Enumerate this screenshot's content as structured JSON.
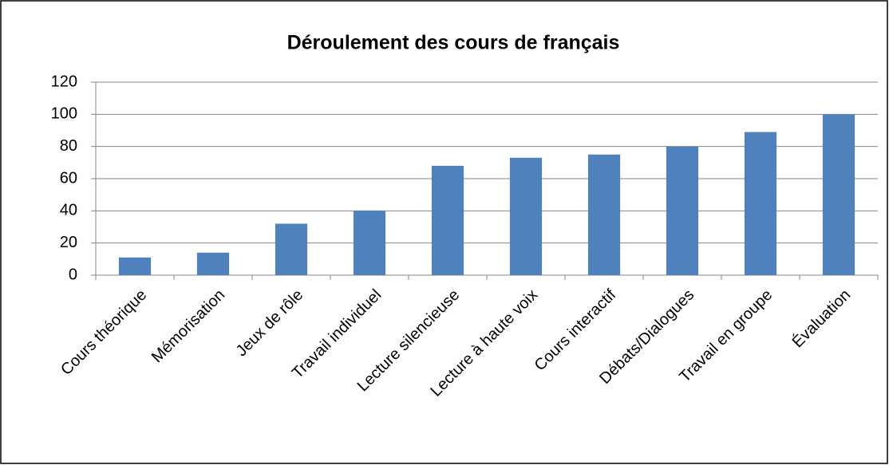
{
  "chart_data": {
    "type": "bar",
    "title": "Déroulement des cours de français",
    "categories": [
      "Cours théorique",
      "Mémorisation",
      "Jeux de rôle",
      "Travail individuel",
      "Lecture silencieuse",
      "Lecture à haute voix",
      "Cours interactif",
      "Débats/Dialogues",
      "Travail en groupe",
      "Évaluation"
    ],
    "values": [
      11,
      14,
      32,
      40,
      68,
      73,
      75,
      80,
      89,
      100
    ],
    "color": "#4f81bd",
    "ylim": [
      0,
      120
    ],
    "yticks": [
      0,
      20,
      40,
      60,
      80,
      100,
      120
    ],
    "grid": true
  }
}
